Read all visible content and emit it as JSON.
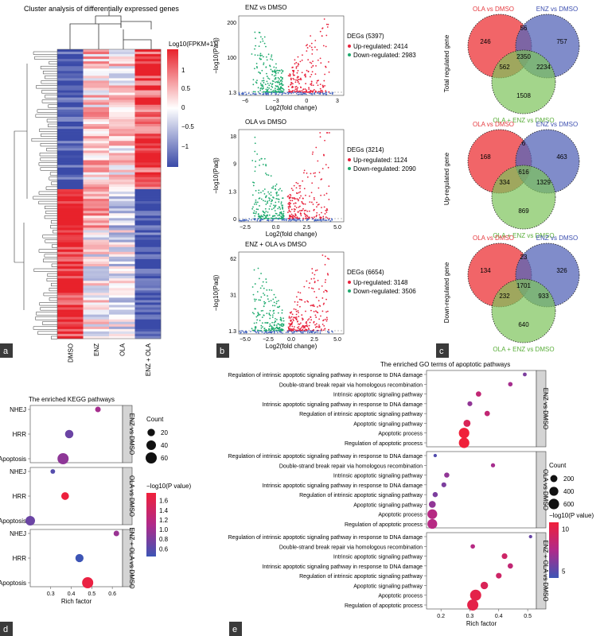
{
  "panels": {
    "a": "a",
    "b": "b",
    "c": "c",
    "d": "d",
    "e": "e"
  },
  "heatmap": {
    "title": "Cluster analysis of differentially expressed genes",
    "legend_title": "Log10(FPKM+1)",
    "legend_ticks": [
      "1",
      "0.5",
      "0",
      "−0.5",
      "−1"
    ],
    "columns": [
      "DMSO",
      "ENZ",
      "OLA",
      "ENZ + OLA"
    ],
    "colors": {
      "high": "#e8222b",
      "mid": "#ffffff",
      "low": "#3a4aa8"
    }
  },
  "volcano": [
    {
      "title": "ENZ vs DMSO",
      "degs": "DEGs (5397)",
      "up": "Up-regulated: 2414",
      "down": "Down-regulated: 2983",
      "yticks": [
        "200",
        "100",
        "1.3"
      ],
      "xticks": [
        "−6",
        "−3",
        "0",
        "3"
      ],
      "xlabel": "Log2(fold change)",
      "ylabel": "−log10(Padj)"
    },
    {
      "title": "OLA vs DMSO",
      "degs": "DEGs (3214)",
      "up": "Up-regulated: 1124",
      "down": "Down-regulated: 2090",
      "yticks": [
        "18",
        "9",
        "1.3",
        "0"
      ],
      "xticks": [
        "−2.5",
        "0.0",
        "2.5",
        "5.0"
      ],
      "xlabel": "Log2(fold change)",
      "ylabel": "−log10(Padj)"
    },
    {
      "title": "ENZ + OLA vs DMSO",
      "degs": "DEGs (6654)",
      "up": "Up-regulated: 3148",
      "down": "Down-regulated: 3506",
      "yticks": [
        "62",
        "31",
        "1.3"
      ],
      "xticks": [
        "−5.0",
        "−2.5",
        "0.0",
        "2.5",
        "5.0"
      ],
      "xlabel": "Log2(fold change)",
      "ylabel": "−log10(Padj)"
    }
  ],
  "venn": [
    {
      "side": "Total regulated gene",
      "a": "OLA vs DMSO",
      "b": "ENZ vs DMSO",
      "c": "OLA + ENZ vs DMSO",
      "n": {
        "a": "246",
        "ab": "56",
        "b": "757",
        "ac": "562",
        "abc": "2350",
        "bc": "2234",
        "c": "1508"
      }
    },
    {
      "side": "Up-regulated gene",
      "a": "OLA vs DMSO",
      "b": "ENZ vs DMSO",
      "c": "OLA + ENZ vs DMSO",
      "n": {
        "a": "168",
        "ab": "6",
        "b": "463",
        "ac": "334",
        "abc": "616",
        "bc": "1329",
        "c": "869"
      }
    },
    {
      "side": "Down-regulated gene",
      "a": "OLA vs DMSO",
      "b": "ENZ vs DMSO",
      "c": "OLA + ENZ vs DMSO",
      "n": {
        "a": "134",
        "ab": "23",
        "b": "326",
        "ac": "232",
        "abc": "1701",
        "bc": "933",
        "c": "640"
      }
    }
  ],
  "kegg": {
    "title": "The enriched KEGG pathways",
    "pathways": [
      "NHEJ",
      "HRR",
      "Apoptosis"
    ],
    "facets": [
      {
        "label": "ENZ vs DMSO",
        "rich": [
          0.53,
          0.39,
          0.36
        ],
        "count": [
          8,
          28,
          60
        ],
        "p": [
          1.05,
          0.8,
          0.95
        ]
      },
      {
        "label": "OLA vs DMSO",
        "rich": [
          0.31,
          0.37,
          0.2
        ],
        "count": [
          4,
          22,
          40
        ],
        "p": [
          0.7,
          1.58,
          0.8
        ]
      },
      {
        "label": "ENZ + OLA vs DMSO",
        "rich": [
          0.62,
          0.44,
          0.48
        ],
        "count": [
          8,
          26,
          60
        ],
        "p": [
          1.0,
          0.6,
          1.55
        ]
      }
    ],
    "xticks": [
      "0.3",
      "0.4",
      "0.5",
      "0.6"
    ],
    "xlabel": "Rich factor",
    "count_title": "Count",
    "count_ticks": [
      "20",
      "40",
      "60"
    ],
    "p_title": "−log10(P value)",
    "p_ticks": [
      "1.6",
      "1.4",
      "1.2",
      "1.0",
      "0.8",
      "0.6"
    ]
  },
  "go": {
    "title": "The enriched GO terms of apoptotic pathways",
    "terms": [
      "Regulation of intrinsic apoptotic signaling pathway in response to DNA damage",
      "Double-strand break repair via homologous recombination",
      "Intrinsic apoptotic signaling pathway",
      "Intrinsic apoptotic signaling pathway in response to DNA damage",
      "Regulation of intrinsic apoptotic signaling pathway",
      "Apoptotic signaling pathway",
      "Apoptotic process",
      "Regulation of apoptotic process"
    ],
    "facets": [
      {
        "label": "ENZ vs DMSO",
        "rich": [
          0.49,
          0.44,
          0.33,
          0.3,
          0.36,
          0.29,
          0.28,
          0.28
        ],
        "count": [
          20,
          40,
          80,
          60,
          80,
          200,
          600,
          600
        ],
        "p": [
          5,
          7,
          9,
          6,
          9,
          11,
          13,
          13
        ]
      },
      {
        "label": "OLA vs DMSO",
        "rich": [
          0.18,
          0.38,
          0.22,
          0.21,
          0.18,
          0.17,
          0.17,
          0.17
        ],
        "count": [
          10,
          30,
          70,
          60,
          70,
          180,
          500,
          500
        ],
        "p": [
          3,
          7,
          6,
          5,
          5,
          6,
          8,
          8
        ]
      },
      {
        "label": "ENZ + OLA vs DMSO",
        "rich": [
          0.51,
          0.31,
          0.42,
          0.44,
          0.4,
          0.35,
          0.32,
          0.31
        ],
        "count": [
          10,
          40,
          100,
          80,
          100,
          240,
          700,
          700
        ],
        "p": [
          4,
          8,
          10,
          9,
          10,
          11,
          12,
          12
        ]
      }
    ],
    "xticks": [
      "0.2",
      "0.3",
      "0.4",
      "0.5"
    ],
    "xlabel": "Rich factor",
    "count_title": "Count",
    "count_ticks": [
      "200",
      "400",
      "600"
    ],
    "p_title": "−log10(P value)",
    "p_ticks": [
      "10",
      "5"
    ]
  }
}
